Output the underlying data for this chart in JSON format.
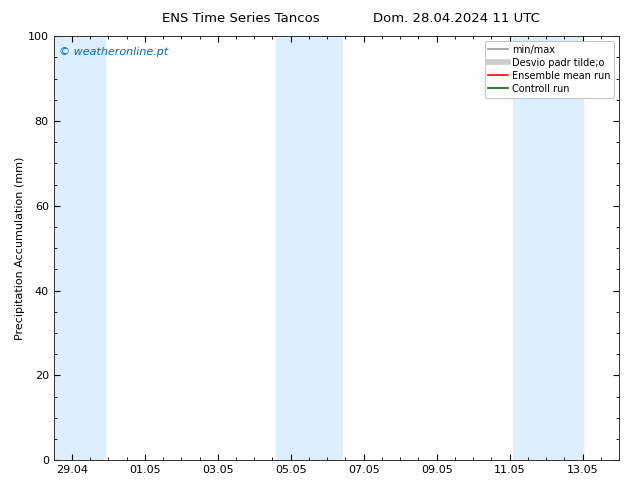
{
  "title_left": "ENS Time Series Tancos",
  "title_right": "Dom. 28.04.2024 11 UTC",
  "ylabel": "Precipitation Accumulation (mm)",
  "ylim": [
    0,
    100
  ],
  "yticks": [
    0,
    20,
    40,
    60,
    80,
    100
  ],
  "xtick_labels": [
    "29.04",
    "01.05",
    "03.05",
    "05.05",
    "07.05",
    "09.05",
    "11.05",
    "13.05"
  ],
  "xtick_positions": [
    0,
    2,
    4,
    6,
    8,
    10,
    12,
    14
  ],
  "xlim": [
    -0.5,
    15.0
  ],
  "watermark": "© weatheronline.pt",
  "watermark_color": "#0066cc",
  "background_color": "#ffffff",
  "plot_bg_color": "#ffffff",
  "shaded_bands": [
    {
      "x_start": -0.5,
      "x_end": 0.9,
      "color": "#ddeeff"
    },
    {
      "x_start": 5.6,
      "x_end": 7.4,
      "color": "#ddeeff"
    },
    {
      "x_start": 12.1,
      "x_end": 14.0,
      "color": "#ddeeff"
    }
  ],
  "legend_items": [
    {
      "label": "min/max",
      "color": "#999999",
      "lw": 1.2,
      "linestyle": "-"
    },
    {
      "label": "Desvio padr tilde;o",
      "color": "#cccccc",
      "lw": 4,
      "linestyle": "-"
    },
    {
      "label": "Ensemble mean run",
      "color": "#ff0000",
      "lw": 1.2,
      "linestyle": "-"
    },
    {
      "label": "Controll run",
      "color": "#006600",
      "lw": 1.2,
      "linestyle": "-"
    }
  ],
  "title_fontsize": 9.5,
  "axis_label_fontsize": 8,
  "tick_fontsize": 8,
  "legend_fontsize": 7
}
